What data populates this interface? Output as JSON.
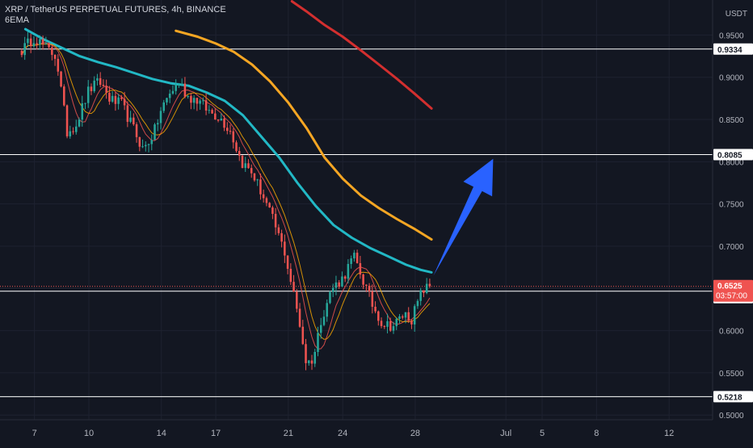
{
  "header": {
    "symbol_line": "XRP / TetherUS PERPETUAL FUTURES, 4h, BINANCE",
    "indicator_label": "6EMA"
  },
  "colors": {
    "background": "#131722",
    "candle_up": "#26a69a",
    "candle_down": "#ef5350",
    "ema_fast_1": "#ef5350",
    "ema_fast_2": "#f7a600",
    "ema_50": "#22b8c5",
    "ema_100": "#f5a623",
    "ema_200": "#d32f2f",
    "arrow": "#2962ff",
    "hline": "#ffffff",
    "axis_text": "#b2b5be",
    "price_tag_current": "#ef5350"
  },
  "chart_data": {
    "type": "candlestick",
    "title": "XRP / TetherUS PERPETUAL FUTURES, 4h, BINANCE",
    "currency_label": "USDT",
    "ylim": [
      0.4945,
      0.9915
    ],
    "y_ticks": [
      "0.9500",
      "0.9000",
      "0.8500",
      "0.8000",
      "0.7500",
      "0.7000",
      "0.6500",
      "0.6000",
      "0.5500",
      "0.5000"
    ],
    "x_ticks": [
      "7",
      "10",
      "14",
      "17",
      "21",
      "24",
      "28",
      "Jul",
      "5",
      "8",
      "12"
    ],
    "x_tick_days": [
      7,
      10,
      14,
      17,
      21,
      24,
      28,
      33,
      35,
      38,
      42
    ],
    "x_day_range": [
      5.1,
      44.4
    ],
    "horizontal_levels": [
      0.9334,
      0.8085,
      0.6525,
      0.6467,
      0.5218
    ],
    "current_price": {
      "label": "0.6525",
      "countdown": "03:57:00"
    },
    "level_labels": [
      "0.9334",
      "0.8085",
      "0.6467",
      "0.5218"
    ],
    "close_path": [
      [
        6.3,
        0.932
      ],
      [
        7.0,
        0.948
      ],
      [
        7.6,
        0.935
      ],
      [
        8.2,
        0.925
      ],
      [
        8.8,
        0.835
      ],
      [
        9.3,
        0.845
      ],
      [
        10.0,
        0.885
      ],
      [
        10.6,
        0.895
      ],
      [
        11.2,
        0.873
      ],
      [
        11.8,
        0.868
      ],
      [
        12.4,
        0.842
      ],
      [
        13.0,
        0.814
      ],
      [
        13.6,
        0.835
      ],
      [
        14.0,
        0.862
      ],
      [
        14.5,
        0.882
      ],
      [
        15.0,
        0.895
      ],
      [
        15.4,
        0.878
      ],
      [
        16.0,
        0.873
      ],
      [
        16.6,
        0.86
      ],
      [
        17.2,
        0.853
      ],
      [
        17.8,
        0.837
      ],
      [
        18.4,
        0.8
      ],
      [
        19.0,
        0.787
      ],
      [
        19.6,
        0.76
      ],
      [
        20.2,
        0.728
      ],
      [
        20.8,
        0.693
      ],
      [
        21.2,
        0.652
      ],
      [
        21.6,
        0.612
      ],
      [
        22.0,
        0.56
      ],
      [
        22.4,
        0.568
      ],
      [
        22.8,
        0.613
      ],
      [
        23.4,
        0.65
      ],
      [
        24.0,
        0.662
      ],
      [
        24.6,
        0.688
      ],
      [
        25.0,
        0.667
      ],
      [
        25.6,
        0.632
      ],
      [
        26.2,
        0.608
      ],
      [
        26.8,
        0.606
      ],
      [
        27.4,
        0.62
      ],
      [
        27.8,
        0.614
      ],
      [
        28.4,
        0.648
      ],
      [
        28.9,
        0.6525
      ]
    ],
    "ema_series": [
      {
        "key": "ema_200",
        "points": [
          [
            21.2,
            0.99
          ],
          [
            22.0,
            0.978
          ],
          [
            23.0,
            0.962
          ],
          [
            24.0,
            0.948
          ],
          [
            25.0,
            0.932
          ],
          [
            26.0,
            0.915
          ],
          [
            27.0,
            0.898
          ],
          [
            28.0,
            0.88
          ],
          [
            28.9,
            0.863
          ]
        ]
      },
      {
        "key": "ema_100",
        "points": [
          [
            14.8,
            0.955
          ],
          [
            16.0,
            0.948
          ],
          [
            17.0,
            0.94
          ],
          [
            18.0,
            0.93
          ],
          [
            19.0,
            0.915
          ],
          [
            20.0,
            0.895
          ],
          [
            21.0,
            0.87
          ],
          [
            22.0,
            0.84
          ],
          [
            23.0,
            0.805
          ],
          [
            24.0,
            0.78
          ],
          [
            25.0,
            0.76
          ],
          [
            26.0,
            0.745
          ],
          [
            27.0,
            0.732
          ],
          [
            28.0,
            0.72
          ],
          [
            28.9,
            0.708
          ]
        ]
      },
      {
        "key": "ema_50",
        "points": [
          [
            6.5,
            0.957
          ],
          [
            7.5,
            0.945
          ],
          [
            8.5,
            0.935
          ],
          [
            9.5,
            0.925
          ],
          [
            10.5,
            0.918
          ],
          [
            11.5,
            0.912
          ],
          [
            12.5,
            0.905
          ],
          [
            13.5,
            0.898
          ],
          [
            14.5,
            0.893
          ],
          [
            15.5,
            0.89
          ],
          [
            16.5,
            0.882
          ],
          [
            17.5,
            0.872
          ],
          [
            18.5,
            0.855
          ],
          [
            19.5,
            0.83
          ],
          [
            20.5,
            0.805
          ],
          [
            21.5,
            0.775
          ],
          [
            22.5,
            0.748
          ],
          [
            23.5,
            0.725
          ],
          [
            24.5,
            0.71
          ],
          [
            25.5,
            0.698
          ],
          [
            26.5,
            0.688
          ],
          [
            27.5,
            0.678
          ],
          [
            28.3,
            0.672
          ],
          [
            28.9,
            0.669
          ]
        ]
      }
    ],
    "fast_ema_lag": [
      2,
      3
    ],
    "projection_arrow": {
      "from": [
        29.0,
        0.665
      ],
      "to": [
        32.3,
        0.8035
      ]
    }
  }
}
